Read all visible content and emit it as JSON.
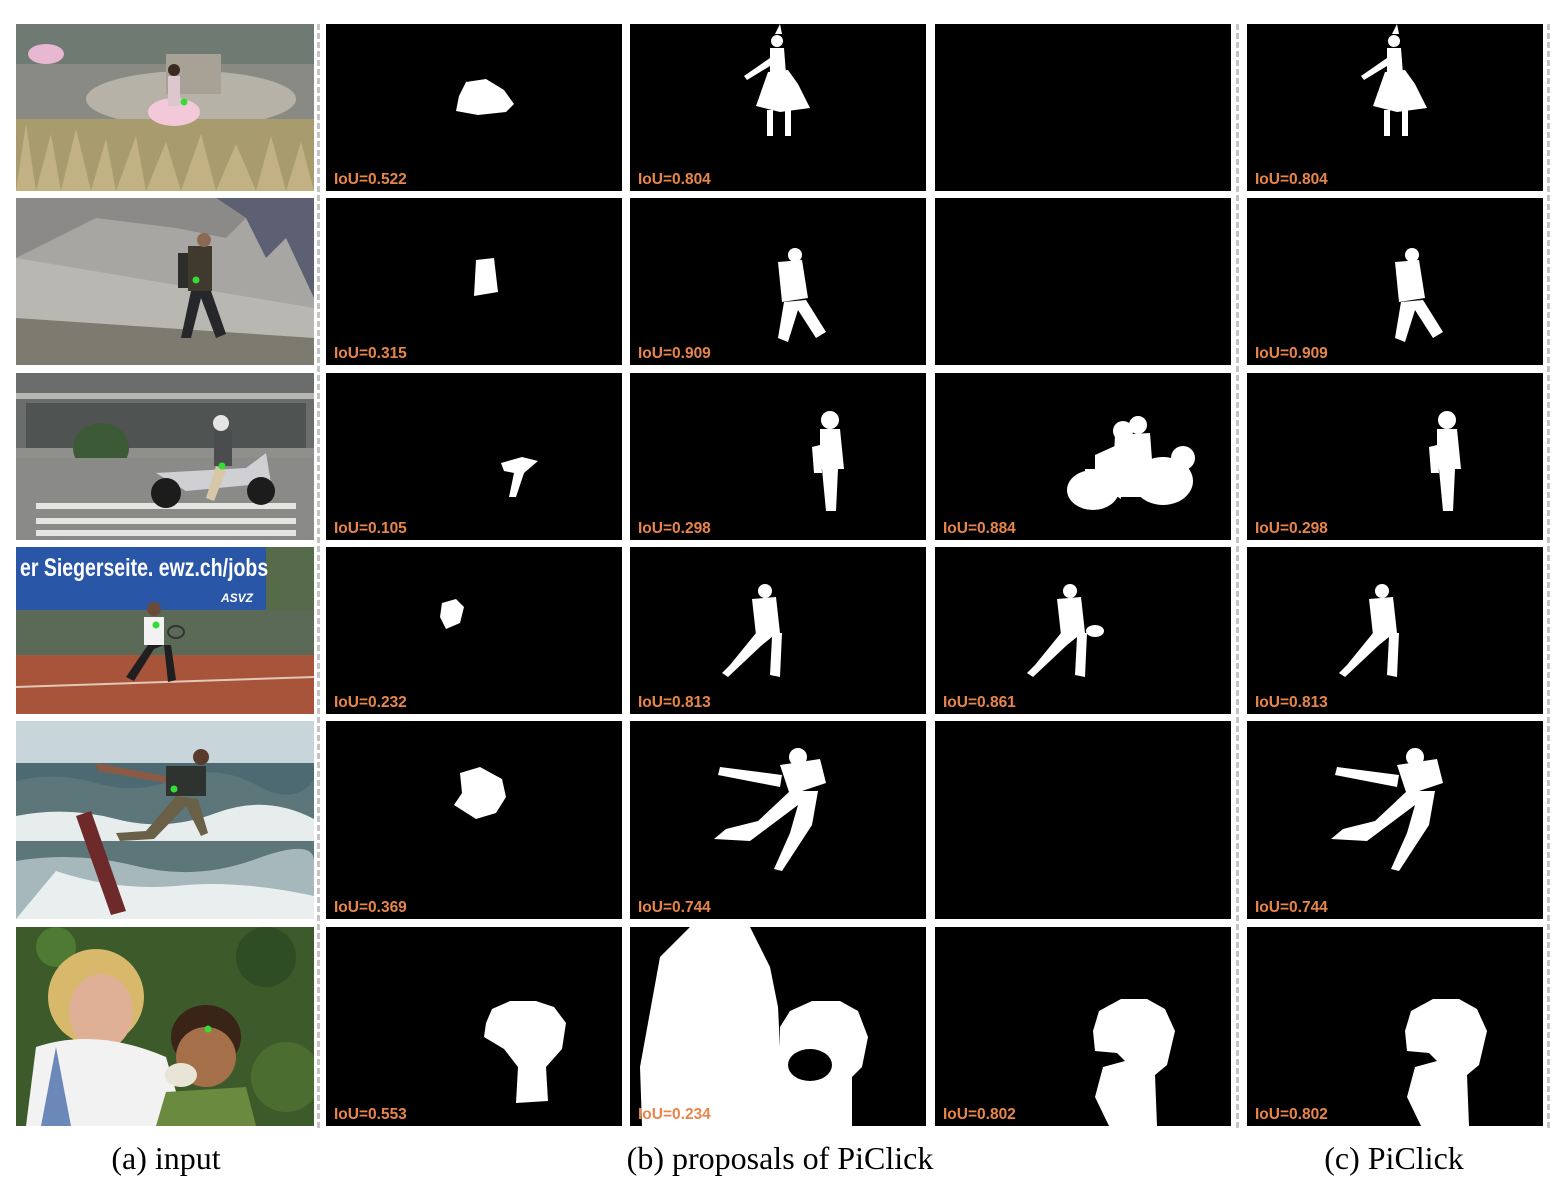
{
  "colors": {
    "iou_label": "#e8854a",
    "mask_bg": "#000000",
    "mask_fg": "#ffffff",
    "click_point": "#33dd33",
    "separator": "#c4c4c4"
  },
  "rows": [
    {
      "input_scene": "dancer at fountain",
      "proposals": [
        "IoU=0.522",
        "IoU=0.804",
        ""
      ],
      "piclick": "IoU=0.804"
    },
    {
      "input_scene": "hiker on rocky slope",
      "proposals": [
        "IoU=0.315",
        "IoU=0.909",
        ""
      ],
      "piclick": "IoU=0.909"
    },
    {
      "input_scene": "rider on scooter",
      "proposals": [
        "IoU=0.105",
        "IoU=0.298",
        "IoU=0.884"
      ],
      "piclick": "IoU=0.298"
    },
    {
      "input_scene": "tennis player",
      "banner_text": "er Siegerseite. ewz.ch/jobs",
      "banner_logo": "ASVZ",
      "proposals": [
        "IoU=0.232",
        "IoU=0.813",
        "IoU=0.861"
      ],
      "piclick": "IoU=0.813"
    },
    {
      "input_scene": "kitesurfer",
      "proposals": [
        "IoU=0.369",
        "IoU=0.744",
        ""
      ],
      "piclick": "IoU=0.744"
    },
    {
      "input_scene": "woman feeding baby",
      "proposals": [
        "IoU=0.553",
        "IoU=0.234",
        "IoU=0.802"
      ],
      "piclick": "IoU=0.802"
    }
  ],
  "captions": {
    "input": "(a) input",
    "proposals": "(b) proposals of PiClick",
    "piclick": "(c) PiClick"
  }
}
